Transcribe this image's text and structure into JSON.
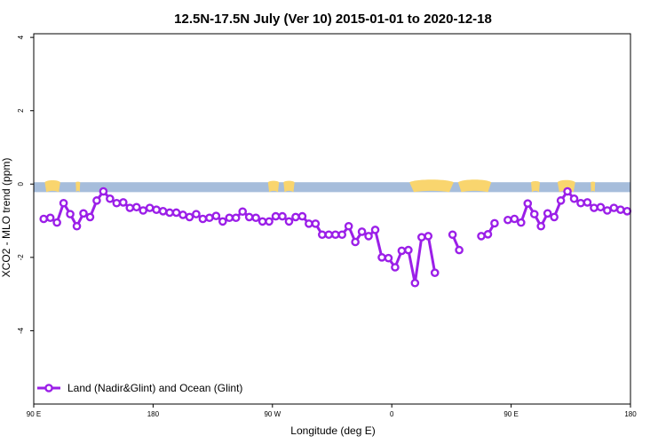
{
  "chart_data": {
    "type": "line",
    "title": "12.5N-17.5N July (Ver 10)   2015-01-01 to 2020-12-18",
    "xlabel": "Longitude (deg E)",
    "ylabel": "XCO2 - MLO trend (ppm)",
    "xlim": [
      -90,
      180
    ],
    "ylim": [
      -6,
      4.1
    ],
    "x_ticks": [
      {
        "value": -90,
        "label": "90 E"
      },
      {
        "value": -36,
        "label": "180"
      },
      {
        "value": 18,
        "label": "90 W"
      },
      {
        "value": 72,
        "label": "0"
      },
      {
        "value": 126,
        "label": "90 E"
      },
      {
        "value": 180,
        "label": "180"
      }
    ],
    "y_ticks": [
      {
        "value": -4,
        "label": "-4"
      },
      {
        "value": -2,
        "label": "-2"
      },
      {
        "value": 0,
        "label": "0"
      },
      {
        "value": 2,
        "label": "2"
      },
      {
        "value": 4,
        "label": "4"
      }
    ],
    "land_band": {
      "y_top": 0.05,
      "y_bottom": -0.22,
      "ocean_color": "#a6bddb",
      "land_color": "#f9d56e",
      "land_segments": [
        [
          -85,
          -78
        ],
        [
          -71,
          -69
        ],
        [
          16,
          21
        ],
        [
          23,
          28
        ],
        [
          80,
          100
        ],
        [
          102,
          117
        ],
        [
          135,
          139
        ],
        [
          147,
          155
        ],
        [
          162,
          164
        ]
      ]
    },
    "legend": {
      "position": "bottom-left"
    },
    "series": [
      {
        "name": "Land (Nadir&Glint) and Ocean (Glint)",
        "color": "#9b1fe8",
        "segments": [
          [
            [
              -85.5,
              -0.95
            ],
            [
              -82.5,
              -0.92
            ],
            [
              -79.5,
              -1.05
            ],
            [
              -76.5,
              -0.52
            ],
            [
              -73.5,
              -0.82
            ],
            [
              -70.5,
              -1.15
            ],
            [
              -67.5,
              -0.8
            ],
            [
              -64.5,
              -0.9
            ],
            [
              -61.5,
              -0.45
            ],
            [
              -58.5,
              -0.2
            ],
            [
              -55.5,
              -0.4
            ],
            [
              -52.5,
              -0.52
            ],
            [
              -49.5,
              -0.5
            ],
            [
              -46.5,
              -0.65
            ],
            [
              -43.5,
              -0.63
            ],
            [
              -40.5,
              -0.72
            ],
            [
              -37.5,
              -0.65
            ],
            [
              -34.5,
              -0.7
            ],
            [
              -31.5,
              -0.74
            ],
            [
              -28.5,
              -0.78
            ],
            [
              -25.5,
              -0.78
            ],
            [
              -22.5,
              -0.84
            ],
            [
              -19.5,
              -0.9
            ],
            [
              -16.5,
              -0.82
            ],
            [
              -13.5,
              -0.95
            ],
            [
              -10.5,
              -0.92
            ],
            [
              -7.5,
              -0.87
            ],
            [
              -4.5,
              -1.02
            ],
            [
              -1.5,
              -0.92
            ],
            [
              1.5,
              -0.92
            ],
            [
              4.5,
              -0.75
            ],
            [
              7.5,
              -0.9
            ],
            [
              10.5,
              -0.92
            ],
            [
              13.5,
              -1.02
            ],
            [
              16.5,
              -1.02
            ],
            [
              19.5,
              -0.88
            ],
            [
              22.5,
              -0.88
            ],
            [
              25.5,
              -1.02
            ],
            [
              28.5,
              -0.9
            ],
            [
              31.5,
              -0.88
            ],
            [
              34.5,
              -1.08
            ],
            [
              37.5,
              -1.08
            ],
            [
              40.5,
              -1.38
            ],
            [
              43.5,
              -1.38
            ],
            [
              46.5,
              -1.38
            ],
            [
              49.5,
              -1.38
            ],
            [
              52.5,
              -1.15
            ],
            [
              55.5,
              -1.58
            ],
            [
              58.5,
              -1.3
            ],
            [
              61.5,
              -1.42
            ],
            [
              64.5,
              -1.25
            ],
            [
              67.5,
              -2.0
            ],
            [
              70.5,
              -2.02
            ],
            [
              73.5,
              -2.27
            ],
            [
              76.5,
              -1.82
            ],
            [
              79.5,
              -1.8
            ],
            [
              82.5,
              -2.7
            ],
            [
              85.5,
              -1.45
            ],
            [
              88.5,
              -1.42
            ],
            [
              91.5,
              -2.42
            ]
          ],
          [
            [
              99.5,
              -1.38
            ],
            [
              102.5,
              -1.8
            ]
          ],
          [
            [
              112.5,
              -1.42
            ],
            [
              115.5,
              -1.37
            ],
            [
              118.5,
              -1.07
            ]
          ],
          [
            [
              124.5,
              -0.98
            ],
            [
              127.5,
              -0.95
            ],
            [
              130.5,
              -1.05
            ],
            [
              133.5,
              -0.53
            ],
            [
              136.5,
              -0.82
            ],
            [
              139.5,
              -1.15
            ],
            [
              142.5,
              -0.8
            ],
            [
              145.5,
              -0.9
            ],
            [
              148.5,
              -0.45
            ],
            [
              151.5,
              -0.2
            ],
            [
              154.5,
              -0.4
            ],
            [
              157.5,
              -0.52
            ],
            [
              160.5,
              -0.5
            ],
            [
              163.5,
              -0.65
            ],
            [
              166.5,
              -0.63
            ],
            [
              169.5,
              -0.72
            ],
            [
              172.5,
              -0.65
            ],
            [
              175.5,
              -0.7
            ],
            [
              178.5,
              -0.74
            ]
          ]
        ]
      }
    ]
  }
}
